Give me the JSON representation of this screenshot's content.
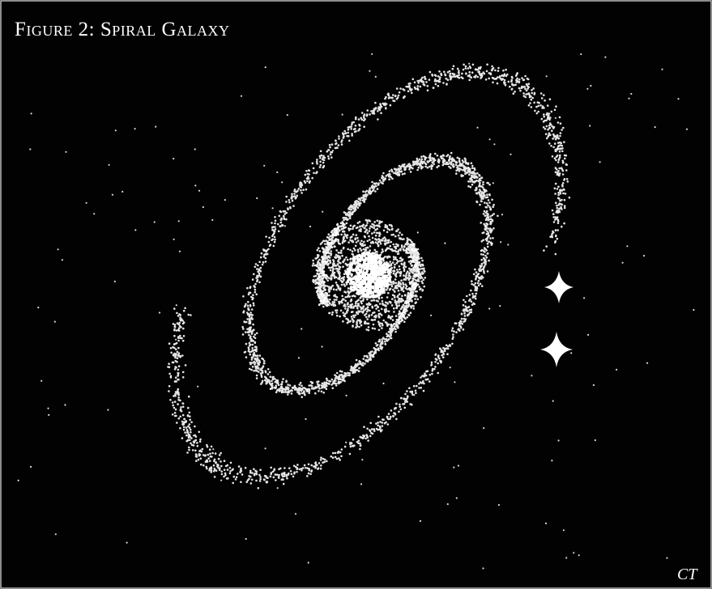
{
  "title": "Figure 2: Spiral Galaxy",
  "signature": "CT"
}
